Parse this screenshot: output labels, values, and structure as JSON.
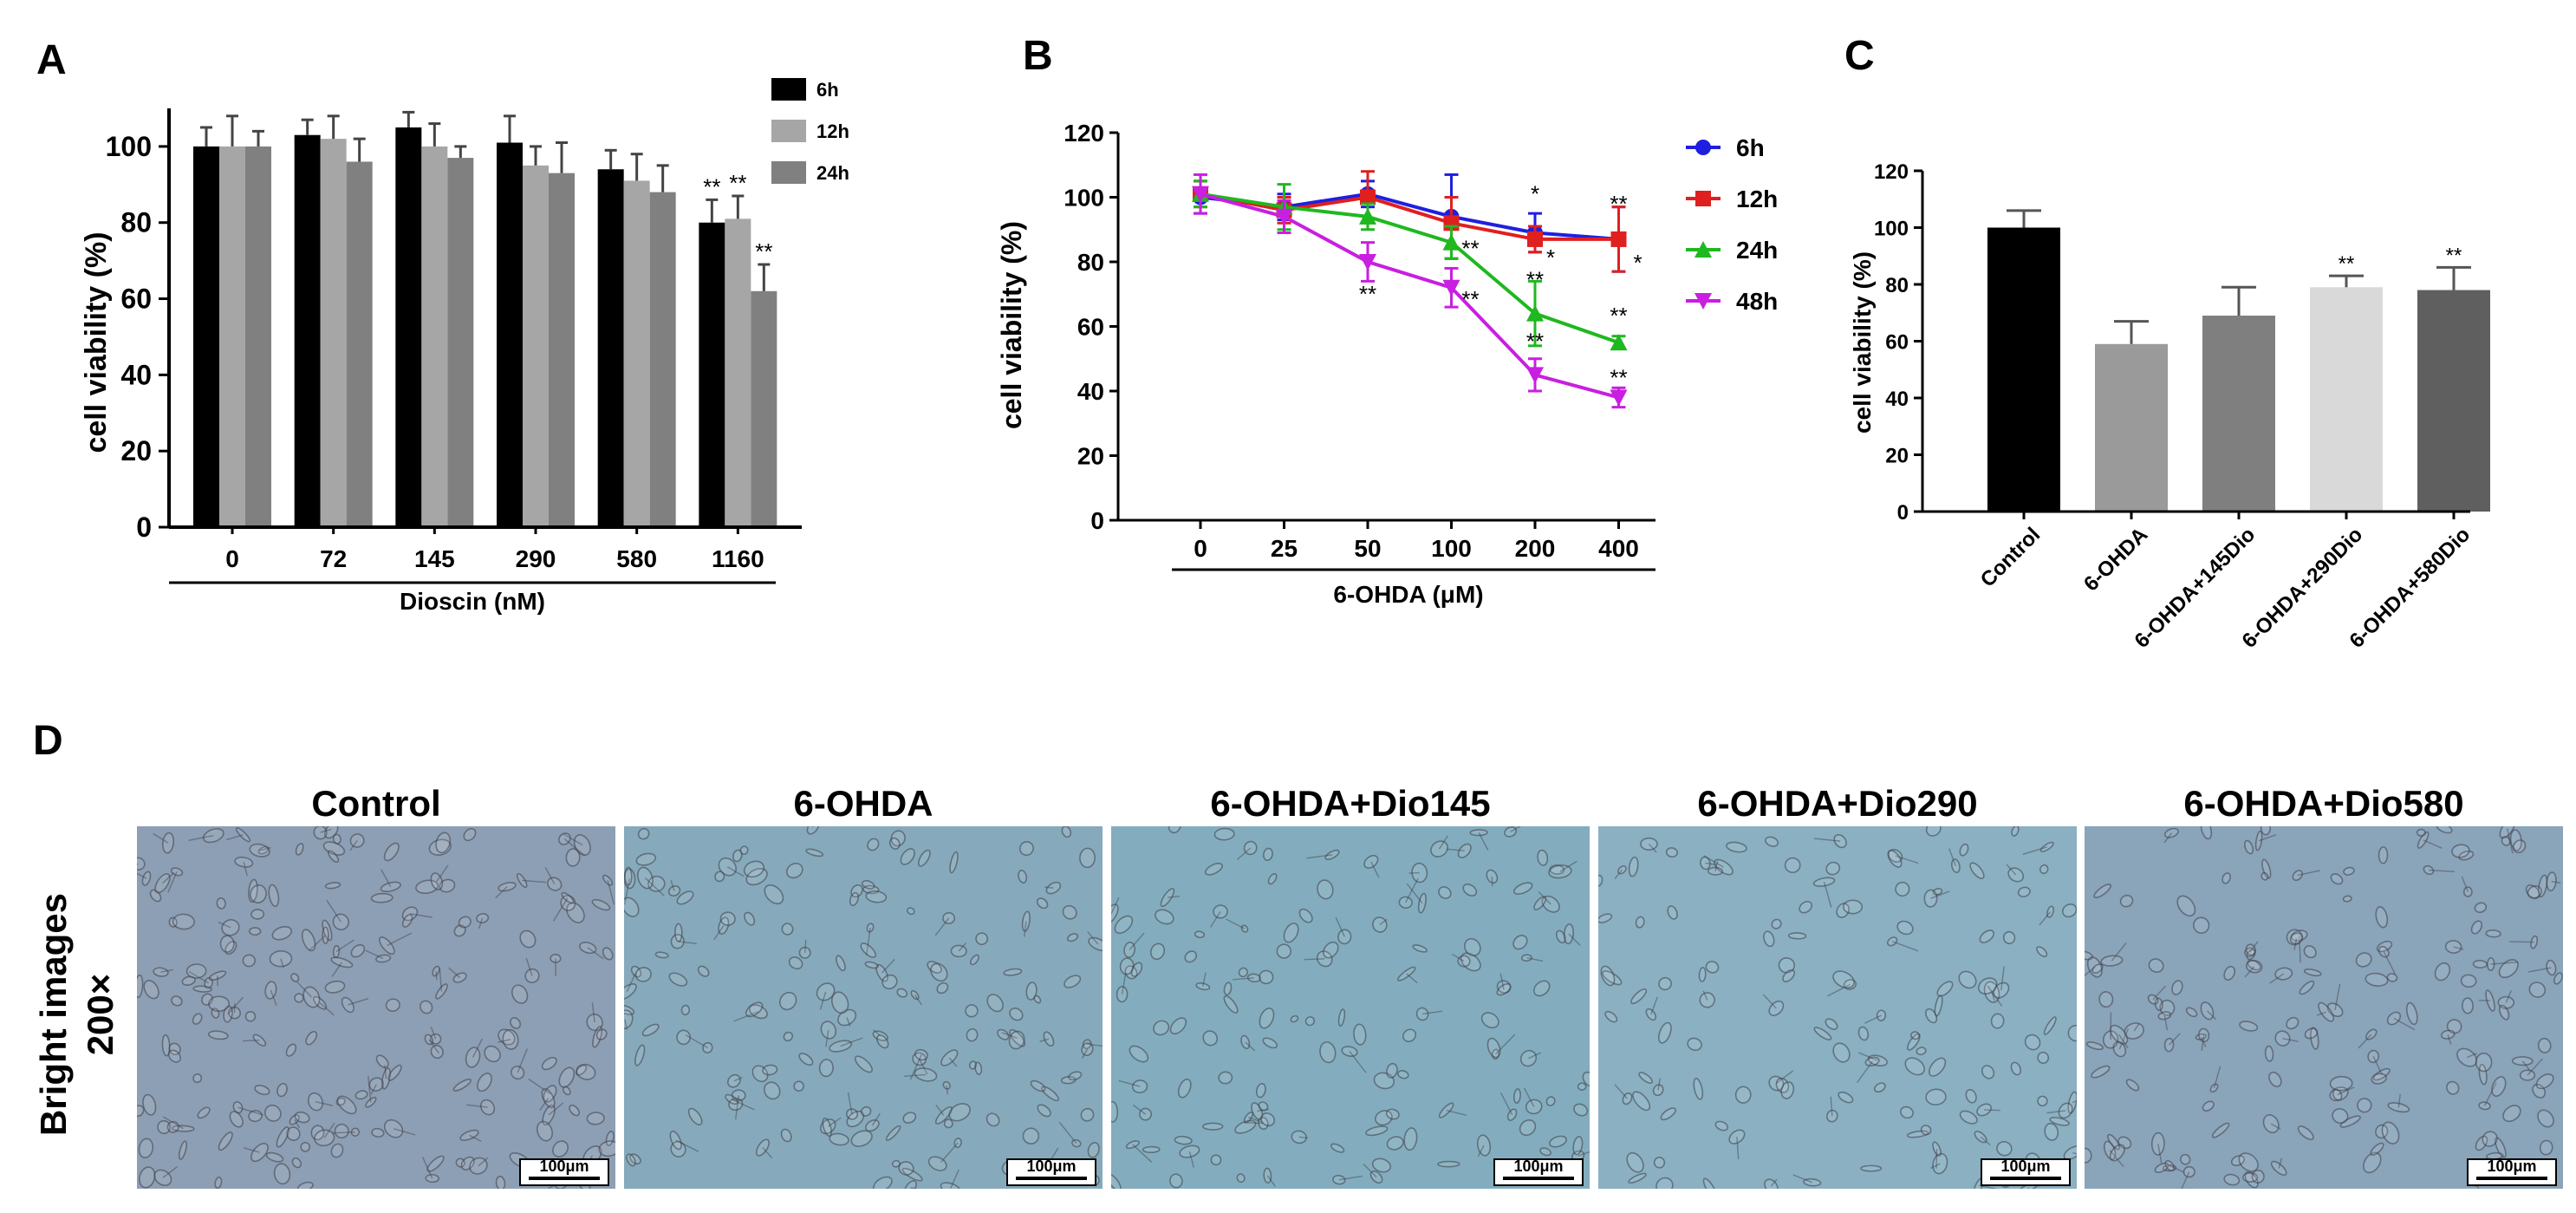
{
  "panel_letters": {
    "a": "A",
    "b": "B",
    "c": "C",
    "d": "D"
  },
  "chart_data": [
    {
      "panel": "A",
      "type": "bar",
      "xlabel": "Dioscin (nM)",
      "ylabel": "cell viability (%)",
      "ylim": [
        0,
        110
      ],
      "yticks": [
        0,
        20,
        40,
        60,
        80,
        100
      ],
      "categories": [
        "0",
        "72",
        "145",
        "290",
        "580",
        "1160"
      ],
      "series": [
        {
          "name": "6h",
          "color": "#000000",
          "values": [
            100,
            103,
            105,
            101,
            94,
            80
          ],
          "errors": [
            5,
            4,
            4,
            7,
            5,
            6
          ],
          "sig": [
            "",
            "",
            "",
            "",
            "",
            "**"
          ]
        },
        {
          "name": "12h",
          "color": "#a6a6a6",
          "values": [
            100,
            102,
            100,
            95,
            91,
            81
          ],
          "errors": [
            8,
            6,
            6,
            5,
            7,
            6
          ],
          "sig": [
            "",
            "",
            "",
            "",
            "",
            "**"
          ]
        },
        {
          "name": "24h",
          "color": "#808080",
          "values": [
            100,
            96,
            97,
            93,
            88,
            62
          ],
          "errors": [
            4,
            6,
            3,
            8,
            7,
            7
          ],
          "sig": [
            "",
            "",
            "",
            "",
            "",
            "**"
          ]
        }
      ],
      "legend_position": "top-right"
    },
    {
      "panel": "B",
      "type": "line",
      "xlabel": "6-OHDA (μM)",
      "ylabel": "cell viability (%)",
      "ylim": [
        0,
        120
      ],
      "yticks": [
        0,
        20,
        40,
        60,
        80,
        100,
        120
      ],
      "x": [
        "0",
        "25",
        "50",
        "100",
        "200",
        "400"
      ],
      "series": [
        {
          "name": "6h",
          "color": "#1f1fe0",
          "marker": "circle",
          "values": [
            100,
            97,
            101,
            94,
            89,
            87
          ],
          "errors": [
            5,
            4,
            4,
            13,
            6,
            10
          ],
          "sig": [
            "",
            "",
            "",
            "",
            "*",
            "**"
          ]
        },
        {
          "name": "12h",
          "color": "#e01f1f",
          "marker": "square",
          "values": [
            101,
            96,
            100,
            92,
            87,
            87
          ],
          "errors": [
            4,
            4,
            8,
            8,
            4,
            10
          ],
          "sig": [
            "",
            "",
            "",
            "",
            "*",
            "*"
          ]
        },
        {
          "name": "24h",
          "color": "#1fb81f",
          "marker": "triangle",
          "values": [
            101,
            97,
            94,
            86,
            64,
            55
          ],
          "errors": [
            4,
            7,
            4,
            5,
            10,
            2
          ],
          "sig": [
            "",
            "",
            "",
            "**",
            "**",
            "**"
          ]
        },
        {
          "name": "48h",
          "color": "#c81fe0",
          "marker": "triangle-down",
          "values": [
            101,
            94,
            80,
            72,
            45,
            38
          ],
          "errors": [
            6,
            5,
            6,
            6,
            5,
            3
          ],
          "sig": [
            "",
            "",
            "**",
            "**",
            "**",
            "**"
          ]
        }
      ],
      "legend_position": "right"
    },
    {
      "panel": "C",
      "type": "bar",
      "xlabel": "",
      "ylabel": "cell viability (%)",
      "ylim": [
        0,
        120
      ],
      "yticks": [
        0,
        20,
        40,
        60,
        80,
        100,
        120
      ],
      "categories": [
        "Control",
        "6-OHDA",
        "6-OHDA+145Dio",
        "6-OHDA+290Dio",
        "6-OHDA+580Dio"
      ],
      "values": [
        100,
        59,
        69,
        79,
        78
      ],
      "errors": [
        6,
        8,
        10,
        4,
        8
      ],
      "colors": [
        "#000000",
        "#9a9a9a",
        "#7f7f7f",
        "#d9d9d9",
        "#5f5f5f"
      ],
      "sig": [
        "",
        "",
        "",
        "**",
        "**"
      ]
    }
  ],
  "panel_d": {
    "row_label": [
      "Bright images",
      "200×"
    ],
    "titles": [
      "Control",
      "6-OHDA",
      "6-OHDA+Dio145",
      "6-OHDA+Dio290",
      "6-OHDA+Dio580"
    ],
    "scale_bar": "100μm",
    "density": [
      0.75,
      0.62,
      0.52,
      0.5,
      0.62
    ],
    "tints": [
      "#8d9fb4",
      "#86aabb",
      "#83adbe",
      "#8ab0c2",
      "#8aa4b9"
    ]
  }
}
